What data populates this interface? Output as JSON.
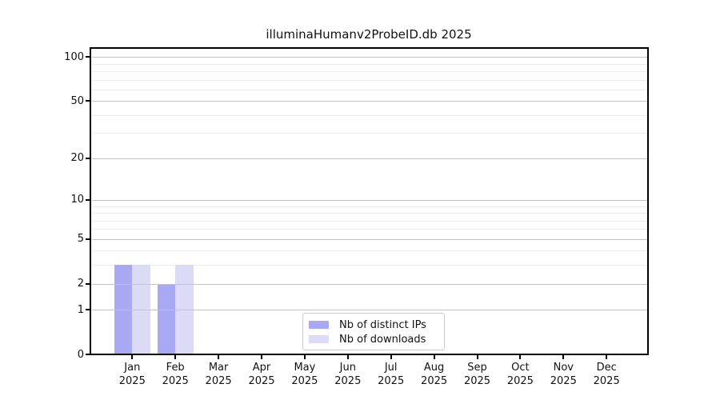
{
  "chart_data": {
    "type": "bar",
    "title": "illuminaHumanv2ProbeID.db 2025",
    "year": "2025",
    "categories": [
      "Jan",
      "Feb",
      "Mar",
      "Apr",
      "May",
      "Jun",
      "Jul",
      "Aug",
      "Sep",
      "Oct",
      "Nov",
      "Dec"
    ],
    "series": [
      {
        "name": "Nb of distinct IPs",
        "color": "#a8a8f3",
        "values": [
          3,
          2,
          0,
          0,
          0,
          0,
          0,
          0,
          0,
          0,
          0,
          0
        ]
      },
      {
        "name": "Nb of downloads",
        "color": "#dbdbf8",
        "values": [
          3,
          3,
          0,
          0,
          0,
          0,
          0,
          0,
          0,
          0,
          0,
          0
        ]
      }
    ],
    "y_axis": {
      "scale": "log1p",
      "ticks": [
        0,
        1,
        2,
        5,
        10,
        20,
        50,
        100
      ],
      "minor_ticks": [
        3,
        4,
        6,
        7,
        8,
        9,
        30,
        40,
        60,
        70,
        80,
        90
      ],
      "ylim": [
        0,
        114
      ]
    },
    "x_axis": {
      "tick_label_line2": "2025"
    },
    "grid": "on",
    "legend_position": "bottom-center",
    "colors": {
      "grid_major": "#c3c3c3",
      "grid_minor": "#ededed",
      "spine": "#000000"
    }
  }
}
